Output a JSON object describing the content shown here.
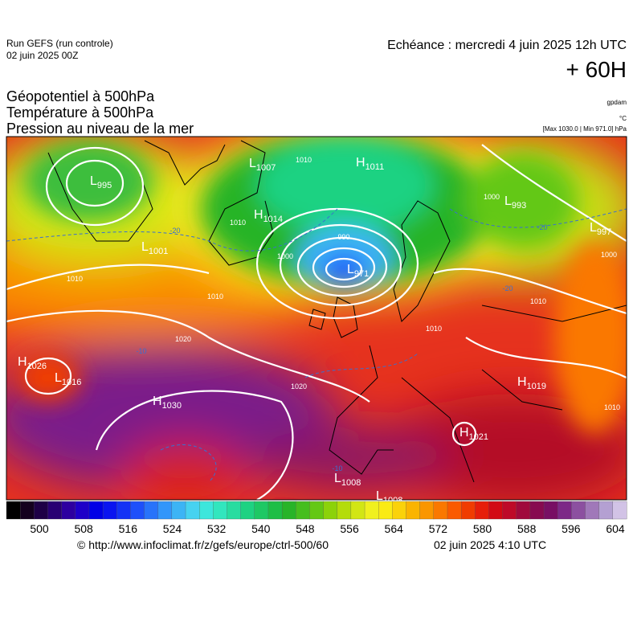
{
  "header": {
    "run": "Run GEFS (run controle)",
    "run_date": "02 juin 2025 00Z",
    "echeance": "Echéance : mercredi 4 juin 2025 12h UTC",
    "lead": "+ 60H",
    "fields": [
      "Géopotentiel à 500hPa",
      "Température à 500hPa",
      "Pression au niveau de la mer"
    ],
    "units": [
      "gpdam",
      "°C",
      "[Max 1030.0 | Min 971.0] hPa"
    ]
  },
  "map": {
    "centers": [
      {
        "letter": "L",
        "value": 995
      },
      {
        "letter": "L",
        "value": 1007
      },
      {
        "letter": "H",
        "value": 1011
      },
      {
        "letter": "H",
        "value": 1014
      },
      {
        "letter": "L",
        "value": 971
      },
      {
        "letter": "L",
        "value": 993
      },
      {
        "letter": "L",
        "value": 997
      },
      {
        "letter": "L",
        "value": 1001
      },
      {
        "letter": "H",
        "value": 1026
      },
      {
        "letter": "L",
        "value": 1016
      },
      {
        "letter": "H",
        "value": 1030
      },
      {
        "letter": "H",
        "value": 1019
      },
      {
        "letter": "H",
        "value": 1021
      },
      {
        "letter": "L",
        "value": 1008
      },
      {
        "letter": "L",
        "value": 1008
      }
    ],
    "isobar_labels": [
      1010,
      1010,
      1000,
      990,
      1010,
      1020,
      1020,
      1010,
      1010,
      1000,
      1000,
      1010,
      1010
    ],
    "temperature_labels": [
      -20,
      -20,
      -20,
      -10,
      -10
    ]
  },
  "colorbar": {
    "colors": [
      "#000000",
      "#14001e",
      "#1e0046",
      "#280073",
      "#2d00a0",
      "#1e00c8",
      "#0000e6",
      "#0a14f0",
      "#1432f5",
      "#1e50fa",
      "#2873fa",
      "#3296fa",
      "#3cb4f5",
      "#46d2f0",
      "#3ce6dc",
      "#32e6be",
      "#28dca0",
      "#1ed282",
      "#1ec864",
      "#1ebe46",
      "#28b428",
      "#46be1e",
      "#64c814",
      "#8cd20a",
      "#b4dc0a",
      "#d2e614",
      "#f0f01e",
      "#faeb14",
      "#fad20a",
      "#fab400",
      "#fa9600",
      "#fa7800",
      "#fa5a00",
      "#f03c00",
      "#e61e0a",
      "#d20a14",
      "#be0a28",
      "#a00a3c",
      "#870a50",
      "#780f64",
      "#7d2887",
      "#8c50a0",
      "#a078b9",
      "#b4a0d2",
      "#d2c3e6"
    ],
    "ticks": [
      500,
      508,
      516,
      524,
      532,
      540,
      548,
      556,
      564,
      572,
      580,
      588,
      596,
      604
    ]
  },
  "footer": {
    "url": "© http://www.infoclimat.fr/z/gefs/europe/ctrl-500/60",
    "time": "02 juin 2025  4:10 UTC"
  }
}
